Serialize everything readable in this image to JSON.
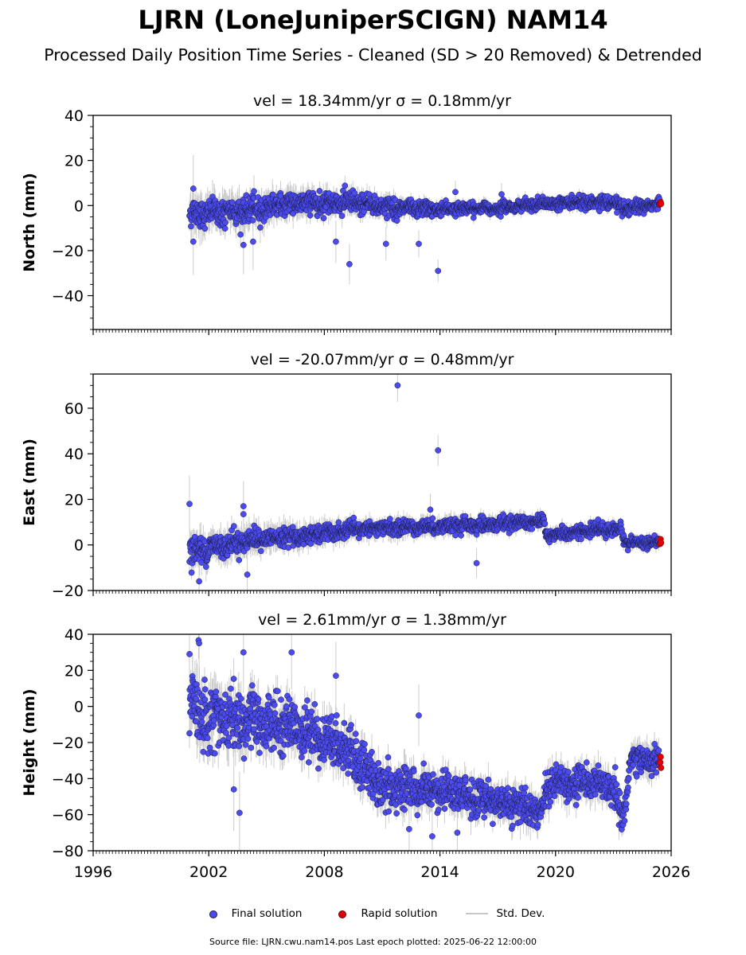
{
  "title": "LJRN (LoneJuniperSCIGN) NAM14",
  "subtitle": "Processed Daily Position Time Series - Cleaned (SD > 20 Removed) & Detrended",
  "legend": {
    "final": "Final solution",
    "rapid": "Rapid solution",
    "std": "Std. Dev."
  },
  "colors": {
    "final": "#4b4bf0",
    "rapid": "#e00000",
    "std": "#c8c8c8",
    "edge": "#1a1a40"
  },
  "source": "Source file: LJRN.cwu.nam14.pos  Last epoch plotted: 2025-06-22 12:00:00",
  "chart_data": [
    {
      "type": "scatter",
      "title": "vel = 18.34mm/yr   σ = 0.18mm/yr",
      "ylabel": "North (mm)",
      "xlim": [
        1996,
        2026
      ],
      "ylim": [
        -55,
        40
      ],
      "yticks": [
        -40,
        -20,
        0,
        20,
        40
      ],
      "trend": [
        [
          2001.0,
          -3.5
        ],
        [
          2004.0,
          -2.5
        ],
        [
          2006.0,
          1.0
        ],
        [
          2008.0,
          1.5
        ],
        [
          2010.0,
          1.0
        ],
        [
          2012.0,
          -1.5
        ],
        [
          2014.0,
          -1.5
        ],
        [
          2017.0,
          -1.0
        ],
        [
          2020.0,
          1.0
        ],
        [
          2023.0,
          1.5
        ],
        [
          2023.5,
          -2.0
        ],
        [
          2025.4,
          1.0
        ]
      ],
      "spread": [
        [
          2001.0,
          4.0
        ],
        [
          2005.0,
          3.5
        ],
        [
          2010.0,
          3.0
        ],
        [
          2013.5,
          2.0
        ],
        [
          2017.0,
          1.5
        ],
        [
          2023.0,
          2.0
        ],
        [
          2025.4,
          1.5
        ]
      ],
      "std_dev": [
        [
          2001.0,
          6.0
        ],
        [
          2008.0,
          4.0
        ],
        [
          2014.0,
          2.0
        ],
        [
          2020.0,
          2.0
        ],
        [
          2025.4,
          1.5
        ]
      ],
      "outliers": [
        [
          2001.2,
          -16.0
        ],
        [
          2001.2,
          7.5
        ],
        [
          2003.8,
          -17.5
        ],
        [
          2004.3,
          -16.0
        ],
        [
          2008.6,
          -16.0
        ],
        [
          2009.3,
          -26.0
        ],
        [
          2011.2,
          -17.0
        ],
        [
          2012.9,
          -17.0
        ],
        [
          2013.9,
          -29.0
        ],
        [
          2017.2,
          5.0
        ],
        [
          2014.8,
          6.0
        ]
      ],
      "rapid": [
        [
          2025.43,
          0.5
        ],
        [
          2025.45,
          1.5
        ],
        [
          2025.47,
          0.8
        ]
      ],
      "start": 2001.0,
      "end": 2025.4,
      "gaps": []
    },
    {
      "type": "scatter",
      "title": "vel = -20.07mm/yr   σ = 0.48mm/yr",
      "ylabel": "East (mm)",
      "xlim": [
        1996,
        2026
      ],
      "ylim": [
        -20,
        75
      ],
      "yticks": [
        -20,
        0,
        20,
        40,
        60
      ],
      "trend": [
        [
          2001.0,
          -3.0
        ],
        [
          2004.0,
          2.0
        ],
        [
          2007.0,
          4.0
        ],
        [
          2010.0,
          7.0
        ],
        [
          2013.0,
          8.0
        ],
        [
          2016.0,
          8.5
        ],
        [
          2019.4,
          11.0
        ],
        [
          2019.5,
          4.0
        ],
        [
          2022.0,
          6.5
        ],
        [
          2023.4,
          7.0
        ],
        [
          2023.6,
          1.0
        ],
        [
          2025.4,
          1.0
        ]
      ],
      "spread": [
        [
          2001.0,
          4.0
        ],
        [
          2005.0,
          2.5
        ],
        [
          2012.0,
          2.0
        ],
        [
          2019.0,
          2.0
        ],
        [
          2025.4,
          1.5
        ]
      ],
      "std_dev": [
        [
          2001.0,
          5.0
        ],
        [
          2010.0,
          3.0
        ],
        [
          2025.4,
          2.0
        ]
      ],
      "outliers": [
        [
          2001.0,
          18.0
        ],
        [
          2003.8,
          17.0
        ],
        [
          2003.8,
          13.5
        ],
        [
          2011.8,
          70.0
        ],
        [
          2013.9,
          41.5
        ],
        [
          2013.5,
          15.5
        ],
        [
          2015.9,
          -8.0
        ],
        [
          2004.0,
          -13.0
        ],
        [
          2001.5,
          -16.0
        ]
      ],
      "rapid": [
        [
          2025.43,
          0.5
        ],
        [
          2025.45,
          2.5
        ],
        [
          2025.47,
          1.0
        ]
      ],
      "start": 2001.0,
      "end": 2025.4,
      "gaps": []
    },
    {
      "type": "scatter",
      "title": "vel = 2.61mm/yr   σ = 1.38mm/yr",
      "ylabel": "Height (mm)",
      "xlim": [
        1996,
        2026
      ],
      "ylim": [
        -80,
        40
      ],
      "yticks": [
        -80,
        -60,
        -40,
        -20,
        0,
        20,
        40
      ],
      "trend": [
        [
          2001.0,
          0.0
        ],
        [
          2003.0,
          -8.0
        ],
        [
          2006.0,
          -10.0
        ],
        [
          2009.0,
          -22.0
        ],
        [
          2011.0,
          -45.0
        ],
        [
          2014.0,
          -48.0
        ],
        [
          2017.0,
          -52.0
        ],
        [
          2019.3,
          -58.0
        ],
        [
          2019.6,
          -42.0
        ],
        [
          2022.0,
          -42.0
        ],
        [
          2023.0,
          -45.0
        ],
        [
          2023.5,
          -65.0
        ],
        [
          2023.9,
          -28.0
        ],
        [
          2025.4,
          -30.0
        ]
      ],
      "spread": [
        [
          2001.0,
          12.0
        ],
        [
          2005.0,
          10.0
        ],
        [
          2010.0,
          9.0
        ],
        [
          2015.0,
          7.0
        ],
        [
          2020.0,
          6.0
        ],
        [
          2025.4,
          5.0
        ]
      ],
      "std_dev": [
        [
          2001.0,
          10.0
        ],
        [
          2010.0,
          7.0
        ],
        [
          2025.4,
          6.0
        ]
      ],
      "outliers": [
        [
          2001.0,
          29.0
        ],
        [
          2001.5,
          35.0
        ],
        [
          2003.6,
          -59.0
        ],
        [
          2003.8,
          30.0
        ],
        [
          2006.3,
          30.0
        ],
        [
          2008.6,
          17.0
        ],
        [
          2012.4,
          -68.0
        ],
        [
          2013.6,
          -72.0
        ],
        [
          2014.9,
          -70.0
        ],
        [
          2012.9,
          -5.0
        ],
        [
          2003.3,
          -46.0
        ]
      ],
      "rapid": [
        [
          2025.43,
          -31.0
        ],
        [
          2025.45,
          -28.0
        ],
        [
          2025.47,
          -34.0
        ]
      ],
      "start": 2001.0,
      "end": 2025.4,
      "gaps": []
    }
  ],
  "xticks": [
    1996,
    2002,
    2008,
    2014,
    2020,
    2026
  ]
}
